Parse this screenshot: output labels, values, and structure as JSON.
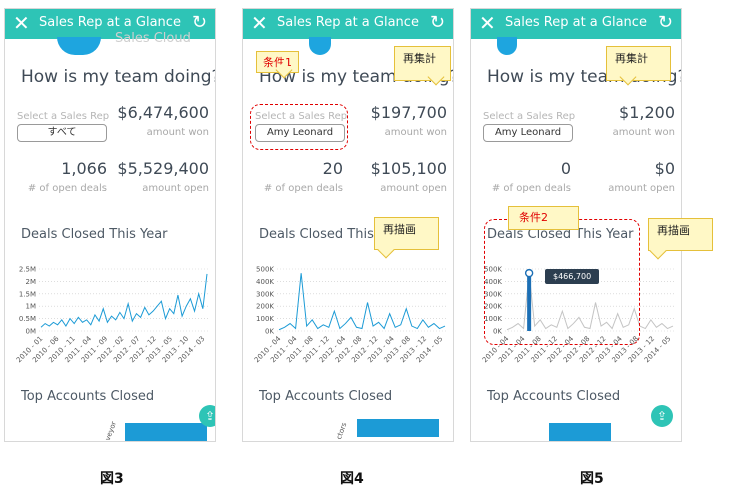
{
  "panels": [
    {
      "header_title": "Sales Rep at a Glance",
      "cloud_text": "Sales Cloud",
      "question": "How is my team doing?",
      "select_label": "Select a Sales Rep",
      "select_value": "すべて",
      "amount_won": "$6,474,600",
      "amount_won_label": "amount won",
      "open_deals": "1,066",
      "open_deals_label": "# of open deals",
      "amount_open": "$5,529,400",
      "amount_open_label": "amount open",
      "chart_title": "Deals Closed This Year",
      "top_accounts_title": "Top Accounts Closed",
      "bar_label": "veyor"
    },
    {
      "header_title": "Sales Rep at a Glance",
      "question": "How is my team doing?",
      "select_label": "Select a Sales Rep",
      "select_value": "Amy Leonard",
      "amount_won": "$197,700",
      "amount_won_label": "amount won",
      "open_deals": "20",
      "open_deals_label": "# of open deals",
      "amount_open": "$105,100",
      "amount_open_label": "amount open",
      "chart_title": "Deals Closed This Year",
      "top_accounts_title": "Top Accounts Closed",
      "bar_label": "ctors",
      "callout_condition": "条件1",
      "callout_reagg": "再集計",
      "callout_redraw": "再描画"
    },
    {
      "header_title": "Sales Rep at a Glance",
      "question": "How is my team doing?",
      "select_label": "Select a Sales Rep",
      "select_value": "Amy Leonard",
      "amount_won": "$1,200",
      "amount_won_label": "amount won",
      "open_deals": "0",
      "open_deals_label": "# of open deals",
      "amount_open": "$0",
      "amount_open_label": "amount open",
      "chart_title": "Deals Closed This Year",
      "top_accounts_title": "Top Accounts Closed",
      "callout_condition": "条件2",
      "callout_reagg": "再集計",
      "callout_redraw": "再描画",
      "tooltip": "$466,700"
    }
  ],
  "figure_labels": [
    "図3",
    "図4",
    "図5"
  ],
  "icons": {
    "close": "close-icon",
    "refresh": "refresh-icon",
    "share": "share-icon"
  },
  "colors": {
    "header": "#2ec4b6",
    "line": "#1c9bd6",
    "callout_bg": "#fff8c6",
    "callout_border": "#e5c03a",
    "dash": "#e00000"
  },
  "chart_data": [
    {
      "type": "line",
      "title": "Deals Closed This Year",
      "x_ticks": [
        "2010 - 01",
        "2010 - 06",
        "2010 - 11",
        "2011 - 04",
        "2011 - 09",
        "2012 - 02",
        "2012 - 07",
        "2012 - 12",
        "2013 - 05",
        "2013 - 10",
        "2014 - 03"
      ],
      "y_ticks": [
        "0M",
        "0.5M",
        "1M",
        "1.5M",
        "2M",
        "2.5M"
      ],
      "ylim": [
        0,
        2500000
      ],
      "values": [
        150000,
        300000,
        200000,
        350000,
        250000,
        450000,
        200000,
        500000,
        300000,
        550000,
        350000,
        450000,
        250000,
        650000,
        400000,
        900000,
        350000,
        600000,
        450000,
        750000,
        500000,
        1100000,
        400000,
        700000,
        550000,
        950000,
        650000,
        800000,
        1000000,
        1200000,
        500000,
        900000,
        700000,
        1450000,
        600000,
        1000000,
        1300000,
        800000,
        1500000,
        900000,
        2300000
      ]
    },
    {
      "type": "line",
      "title": "Deals Closed This Year",
      "x_ticks": [
        "2010 - 04",
        "2011 - 04",
        "2011 - 08",
        "2011 - 12",
        "2012 - 04",
        "2012 - 08",
        "2012 - 12",
        "2013 - 04",
        "2013 - 08",
        "2013 - 12",
        "2014 - 05"
      ],
      "y_ticks": [
        "0K",
        "100K",
        "200K",
        "300K",
        "400K",
        "500K"
      ],
      "ylim": [
        0,
        500000
      ],
      "values": [
        10000,
        30000,
        60000,
        20000,
        466700,
        40000,
        90000,
        20000,
        50000,
        30000,
        160000,
        20000,
        60000,
        110000,
        30000,
        20000,
        230000,
        40000,
        70000,
        20000,
        140000,
        30000,
        50000,
        180000,
        40000,
        20000,
        90000,
        30000,
        60000,
        20000,
        40000
      ]
    },
    {
      "type": "line",
      "title": "Deals Closed This Year",
      "x_ticks": [
        "2010 - 04",
        "2011 - 04",
        "2011 - 08",
        "2011 - 12",
        "2012 - 04",
        "2012 - 08",
        "2012 - 12",
        "2013 - 04",
        "2013 - 08",
        "2013 - 12",
        "2014 - 05"
      ],
      "y_ticks": [
        "0K",
        "100K",
        "200K",
        "300K",
        "400K",
        "500K"
      ],
      "ylim": [
        0,
        500000
      ],
      "highlight_value": 466700,
      "values": [
        10000,
        30000,
        60000,
        20000,
        466700,
        40000,
        90000,
        20000,
        50000,
        30000,
        160000,
        20000,
        60000,
        110000,
        30000,
        20000,
        230000,
        40000,
        70000,
        20000,
        140000,
        30000,
        50000,
        180000,
        40000,
        20000,
        90000,
        30000,
        60000,
        20000,
        40000
      ]
    }
  ]
}
